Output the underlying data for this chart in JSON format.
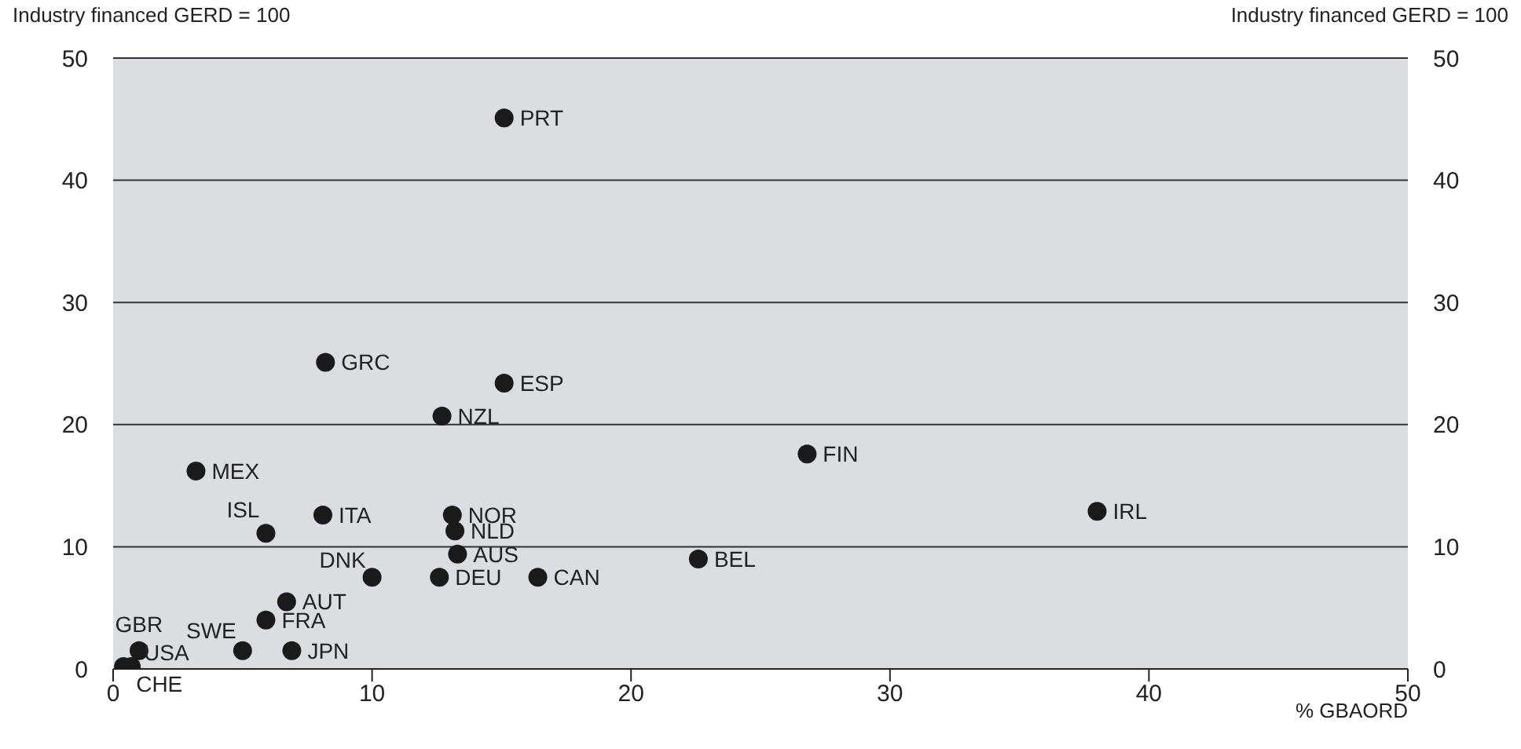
{
  "chart_data": {
    "type": "scatter",
    "ylabel": "Industry financed GERD = 100",
    "y2label": "Industry financed GERD = 100",
    "xlabel": "% GBAORD",
    "xlim": [
      0,
      50
    ],
    "xticks": [
      0,
      10,
      20,
      30,
      40,
      50
    ],
    "ylim": [
      0,
      50
    ],
    "yticks": [
      0,
      10,
      20,
      30,
      40,
      50
    ],
    "y2lim": [
      0,
      50
    ],
    "y2ticks": [
      0,
      10,
      20,
      30,
      40,
      50
    ],
    "grid": "y",
    "legend": false,
    "marker": "circle",
    "series": [
      {
        "color": "#1a1a1a",
        "x": [
          15.1,
          8.2,
          15.1,
          12.7,
          26.8,
          3.2,
          38.0,
          5.9,
          8.1,
          13.1,
          13.2,
          13.3,
          22.6,
          10.0,
          12.6,
          16.4,
          6.7,
          5.9,
          5.0,
          6.9,
          1.0,
          0.7,
          0.4
        ],
        "values": [
          45.1,
          25.1,
          23.4,
          20.7,
          17.6,
          16.2,
          12.9,
          11.1,
          12.6,
          12.6,
          11.3,
          9.4,
          9.0,
          7.5,
          7.5,
          7.5,
          5.5,
          4.0,
          1.5,
          1.5,
          1.5,
          0.2,
          0.2
        ]
      }
    ],
    "annotations": [
      {
        "text": "PRT",
        "x": 15.1,
        "y": 45.1
      },
      {
        "text": "GRC",
        "x": 8.2,
        "y": 25.1
      },
      {
        "text": "ESP",
        "x": 15.1,
        "y": 23.4
      },
      {
        "text": "NZL",
        "x": 12.7,
        "y": 20.7
      },
      {
        "text": "FIN",
        "x": 26.8,
        "y": 17.6
      },
      {
        "text": "MEX",
        "x": 3.2,
        "y": 16.2
      },
      {
        "text": "IRL",
        "x": 38.0,
        "y": 12.9
      },
      {
        "text": "ISL",
        "x": 5.9,
        "y": 11.1
      },
      {
        "text": "ITA",
        "x": 8.1,
        "y": 12.6
      },
      {
        "text": "NOR",
        "x": 13.1,
        "y": 12.6
      },
      {
        "text": "NLD",
        "x": 13.2,
        "y": 11.3
      },
      {
        "text": "AUS",
        "x": 13.3,
        "y": 9.4
      },
      {
        "text": "BEL",
        "x": 22.6,
        "y": 9.0
      },
      {
        "text": "DNK",
        "x": 10.0,
        "y": 7.5
      },
      {
        "text": "DEU",
        "x": 12.6,
        "y": 7.5
      },
      {
        "text": "CAN",
        "x": 16.4,
        "y": 7.5
      },
      {
        "text": "AUT",
        "x": 6.7,
        "y": 5.5
      },
      {
        "text": "FRA",
        "x": 5.9,
        "y": 4.0
      },
      {
        "text": "SWE",
        "x": 5.0,
        "y": 1.5
      },
      {
        "text": "JPN",
        "x": 6.9,
        "y": 1.5
      },
      {
        "text": "GBR",
        "x": 1.0,
        "y": 1.5
      },
      {
        "text": "USA",
        "x": 0.7,
        "y": 0.2
      },
      {
        "text": "CHE",
        "x": 0.4,
        "y": 0.2
      }
    ]
  }
}
